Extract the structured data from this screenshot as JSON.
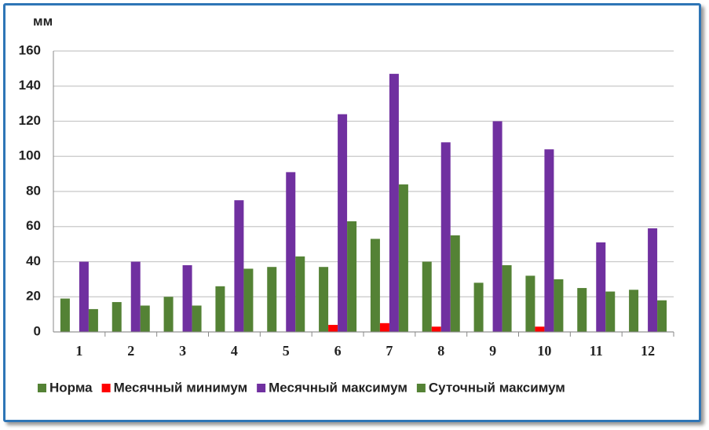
{
  "chart_data": {
    "type": "bar",
    "y_label": "мм",
    "categories": [
      "1",
      "2",
      "3",
      "4",
      "5",
      "6",
      "7",
      "8",
      "9",
      "10",
      "11",
      "12"
    ],
    "series": [
      {
        "name": "Норма",
        "color": "#548235",
        "values": [
          19,
          17,
          20,
          26,
          37,
          37,
          53,
          40,
          28,
          32,
          25,
          24
        ]
      },
      {
        "name": "Месячный минимум",
        "color": "#ff0000",
        "values": [
          0,
          0,
          0,
          0,
          0,
          4,
          5,
          3,
          0,
          3,
          0,
          0
        ]
      },
      {
        "name": "Месячный максимум",
        "color": "#7030a0",
        "values": [
          40,
          40,
          38,
          75,
          91,
          124,
          147,
          108,
          120,
          104,
          51,
          59
        ]
      },
      {
        "name": "Суточный максимум",
        "color": "#548235",
        "values": [
          13,
          15,
          15,
          36,
          43,
          63,
          84,
          55,
          38,
          30,
          23,
          18
        ]
      }
    ],
    "ylim": [
      0,
      160
    ],
    "yticks": [
      0,
      20,
      40,
      60,
      80,
      100,
      120,
      140,
      160
    ],
    "grid": true
  }
}
